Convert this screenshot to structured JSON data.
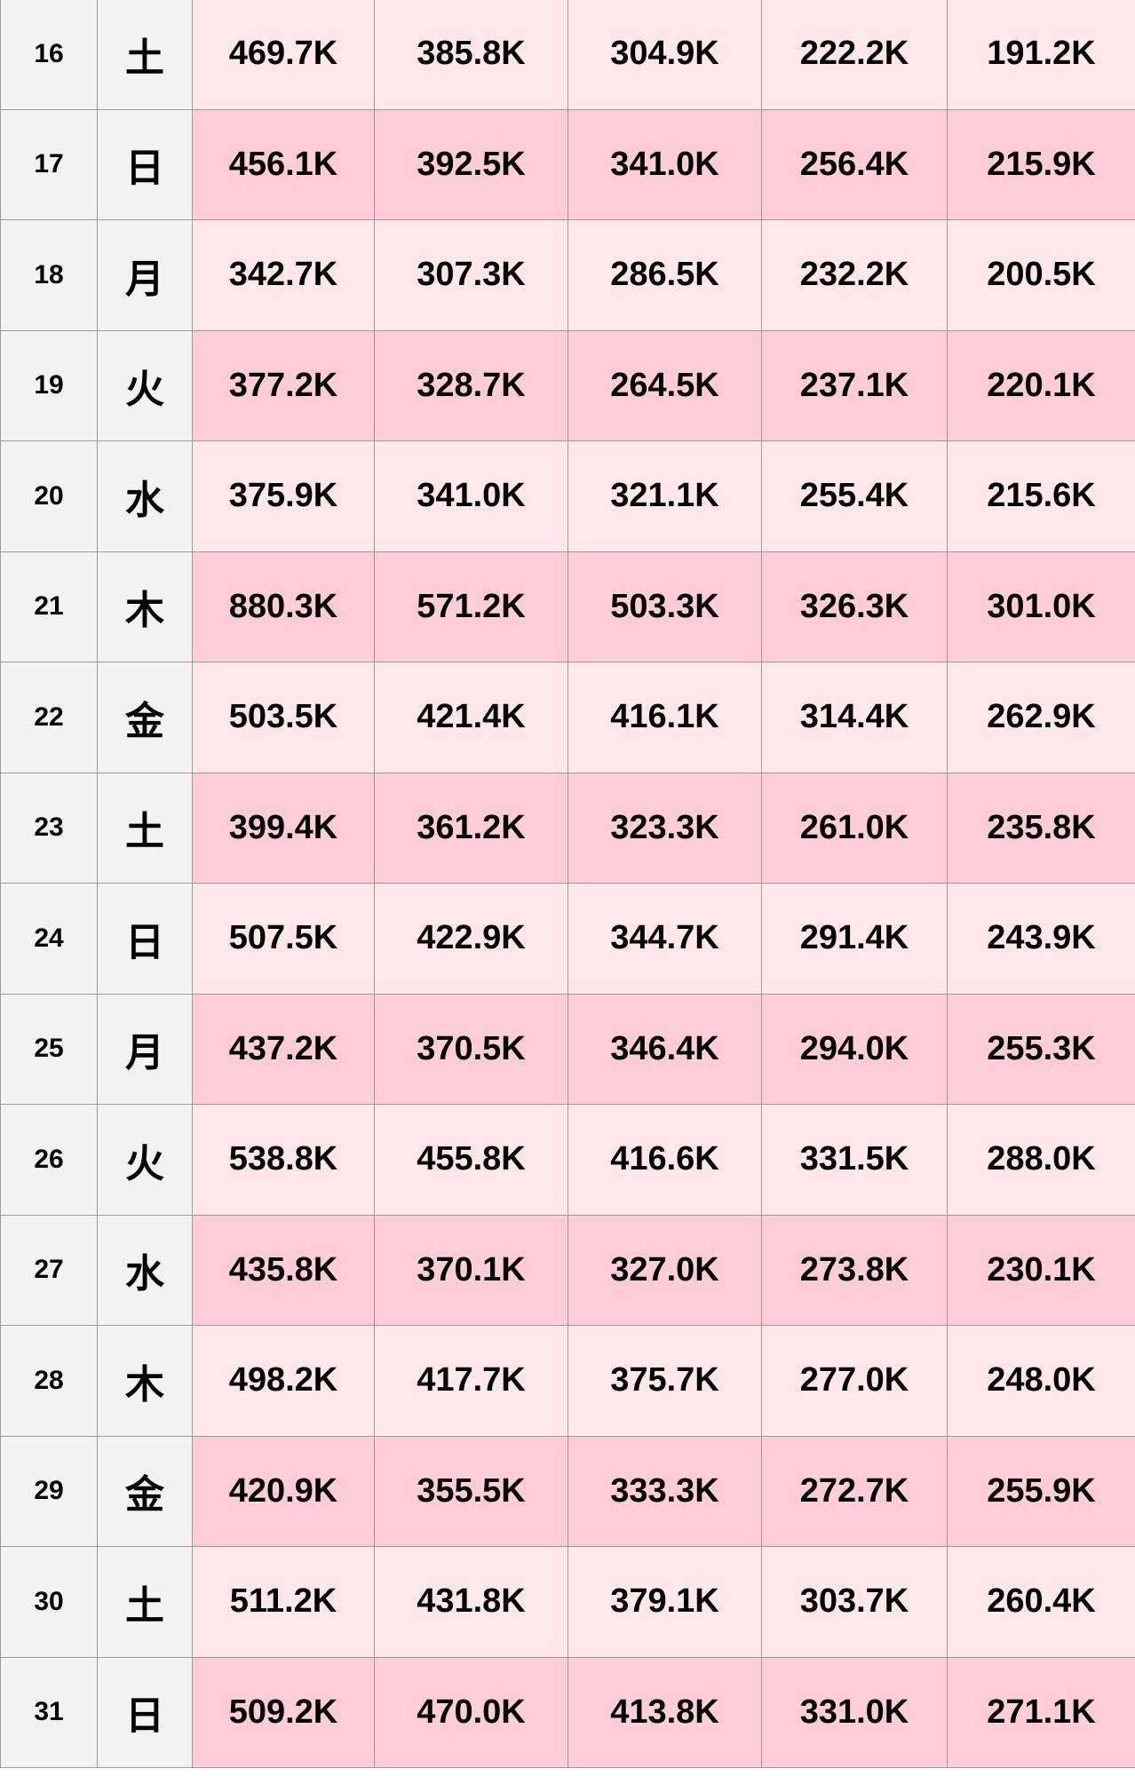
{
  "table": {
    "rows": [
      {
        "day": "16",
        "weekday": "土",
        "values": [
          "469.7K",
          "385.8K",
          "304.9K",
          "222.2K",
          "191.2K"
        ]
      },
      {
        "day": "17",
        "weekday": "日",
        "values": [
          "456.1K",
          "392.5K",
          "341.0K",
          "256.4K",
          "215.9K"
        ]
      },
      {
        "day": "18",
        "weekday": "月",
        "values": [
          "342.7K",
          "307.3K",
          "286.5K",
          "232.2K",
          "200.5K"
        ]
      },
      {
        "day": "19",
        "weekday": "火",
        "values": [
          "377.2K",
          "328.7K",
          "264.5K",
          "237.1K",
          "220.1K"
        ]
      },
      {
        "day": "20",
        "weekday": "水",
        "values": [
          "375.9K",
          "341.0K",
          "321.1K",
          "255.4K",
          "215.6K"
        ]
      },
      {
        "day": "21",
        "weekday": "木",
        "values": [
          "880.3K",
          "571.2K",
          "503.3K",
          "326.3K",
          "301.0K"
        ]
      },
      {
        "day": "22",
        "weekday": "金",
        "values": [
          "503.5K",
          "421.4K",
          "416.1K",
          "314.4K",
          "262.9K"
        ]
      },
      {
        "day": "23",
        "weekday": "土",
        "values": [
          "399.4K",
          "361.2K",
          "323.3K",
          "261.0K",
          "235.8K"
        ]
      },
      {
        "day": "24",
        "weekday": "日",
        "values": [
          "507.5K",
          "422.9K",
          "344.7K",
          "291.4K",
          "243.9K"
        ]
      },
      {
        "day": "25",
        "weekday": "月",
        "values": [
          "437.2K",
          "370.5K",
          "346.4K",
          "294.0K",
          "255.3K"
        ]
      },
      {
        "day": "26",
        "weekday": "火",
        "values": [
          "538.8K",
          "455.8K",
          "416.6K",
          "331.5K",
          "288.0K"
        ]
      },
      {
        "day": "27",
        "weekday": "水",
        "values": [
          "435.8K",
          "370.1K",
          "327.0K",
          "273.8K",
          "230.1K"
        ]
      },
      {
        "day": "28",
        "weekday": "木",
        "values": [
          "498.2K",
          "417.7K",
          "375.7K",
          "277.0K",
          "248.0K"
        ]
      },
      {
        "day": "29",
        "weekday": "金",
        "values": [
          "420.9K",
          "355.5K",
          "333.3K",
          "272.7K",
          "255.9K"
        ]
      },
      {
        "day": "30",
        "weekday": "土",
        "values": [
          "511.2K",
          "431.8K",
          "379.1K",
          "303.7K",
          "260.4K"
        ]
      },
      {
        "day": "31",
        "weekday": "日",
        "values": [
          "509.2K",
          "470.0K",
          "413.8K",
          "331.0K",
          "271.1K"
        ]
      }
    ]
  },
  "colors": {
    "label_bg": "#f2f2f2",
    "row_light": "#ffe7ec",
    "row_dark": "#ffccd9",
    "border": "#9a9a9a"
  }
}
